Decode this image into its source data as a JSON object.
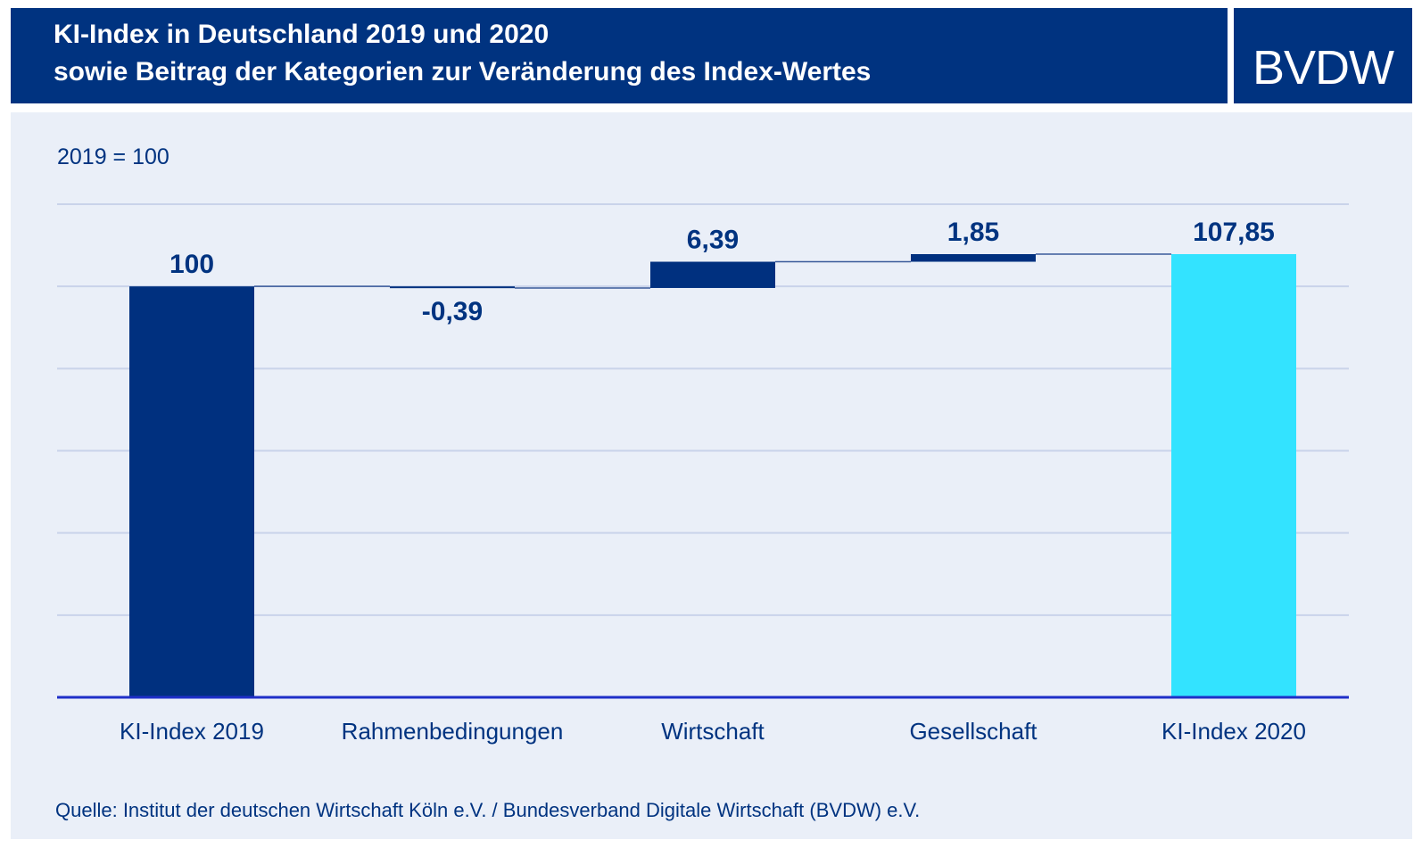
{
  "header": {
    "title_line1": "KI-Index in Deutschland 2019 und 2020",
    "title_line2": "sowie Beitrag der Kategorien zur Veränderung des Index-Wertes",
    "logo_text": "BVDW"
  },
  "chart_data": {
    "type": "bar",
    "subtype": "waterfall",
    "base_label": "2019 = 100",
    "categories": [
      "KI-Index 2019",
      "Rahmenbedingungen",
      "Wirtschaft",
      "Gesellschaft",
      "KI-Index 2020"
    ],
    "values": [
      100,
      -0.39,
      6.39,
      1.85,
      107.85
    ],
    "value_labels": [
      "100",
      "-0,39",
      "6,39",
      "1,85",
      "107,85"
    ],
    "bar_kinds": [
      "total",
      "delta",
      "delta",
      "delta",
      "total"
    ],
    "ylim": [
      0,
      120
    ],
    "grid": true,
    "legend": "none",
    "colors": {
      "header": "#003380",
      "bar_dark": "#00307f",
      "bar_final": "#33e3ff",
      "text": "#003380",
      "grid": "#c9d3ea",
      "axis": "#1f2fc8",
      "connector": "#3a5a9a",
      "panel": "#eaeff8"
    }
  },
  "source": "Quelle: Institut der deutschen Wirtschaft Köln e.V. / Bundesverband Digitale Wirtschaft (BVDW) e.V."
}
